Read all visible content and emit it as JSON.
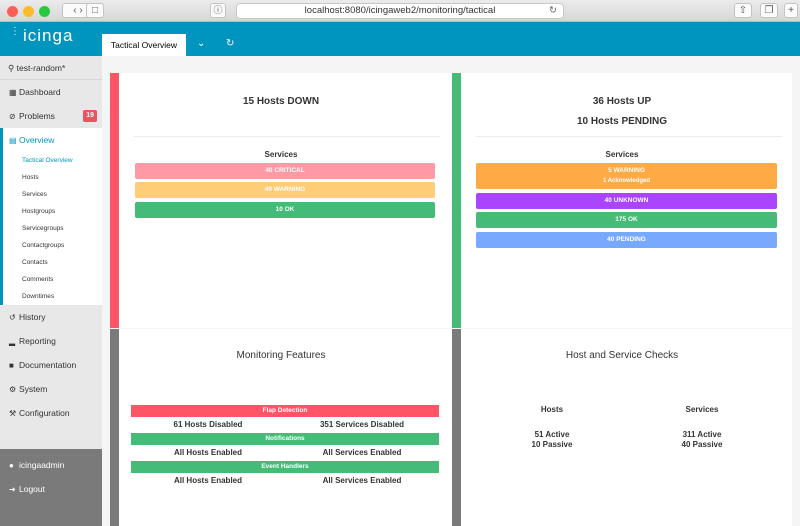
{
  "browser": {
    "url": "localhost:8080/icingaweb2/monitoring/tactical"
  },
  "header": {
    "logo": "icinga",
    "tab": "Tactical Overview"
  },
  "sidebar": {
    "search": "test-random*",
    "dashboard": "Dashboard",
    "problems": "Problems",
    "problems_count": "19",
    "overview": "Overview",
    "sub": [
      "Tactical Overview",
      "Hosts",
      "Services",
      "Hostgroups",
      "Servicegroups",
      "Contactgroups",
      "Contacts",
      "Comments",
      "Downtimes"
    ],
    "history": "History",
    "reporting": "Reporting",
    "documentation": "Documentation",
    "system": "System",
    "configuration": "Configuration",
    "user": "icingaadmin",
    "logout": "Logout"
  },
  "colors": {
    "brand": "#0095bf",
    "critical": "#ff5566",
    "ok": "#44bb77",
    "warning": "#ffaa44",
    "unknown": "#aa44ff",
    "pending": "#77aaff"
  },
  "down_panel": {
    "title": "15 Hosts DOWN",
    "services_label": "Services",
    "critical": "40 CRITICAL",
    "warning": "40 WARNING",
    "ok": "10 OK"
  },
  "up_panel": {
    "title": "36 Hosts UP",
    "subtitle": "10 Hosts PENDING",
    "services_label": "Services",
    "warning": "5 WARNING",
    "acknowledged": "1 Acknowledged",
    "unknown": "40 UNKNOWN",
    "ok": "175 OK",
    "pending": "40 PENDING"
  },
  "features": {
    "title": "Monitoring Features",
    "flap": "Flap Detection",
    "flap_hosts": "61 Hosts Disabled",
    "flap_services": "351 Services Disabled",
    "notifications": "Notifications",
    "notif_hosts": "All Hosts Enabled",
    "notif_services": "All Services Enabled",
    "events": "Event Handlers",
    "events_hosts": "All Hosts Enabled",
    "events_services": "All Services Enabled"
  },
  "checks": {
    "title": "Host and Service Checks",
    "hosts_label": "Hosts",
    "services_label": "Services",
    "hosts_active": "51 Active",
    "hosts_passive": "10 Passive",
    "services_active": "311 Active",
    "services_passive": "40 Passive"
  }
}
